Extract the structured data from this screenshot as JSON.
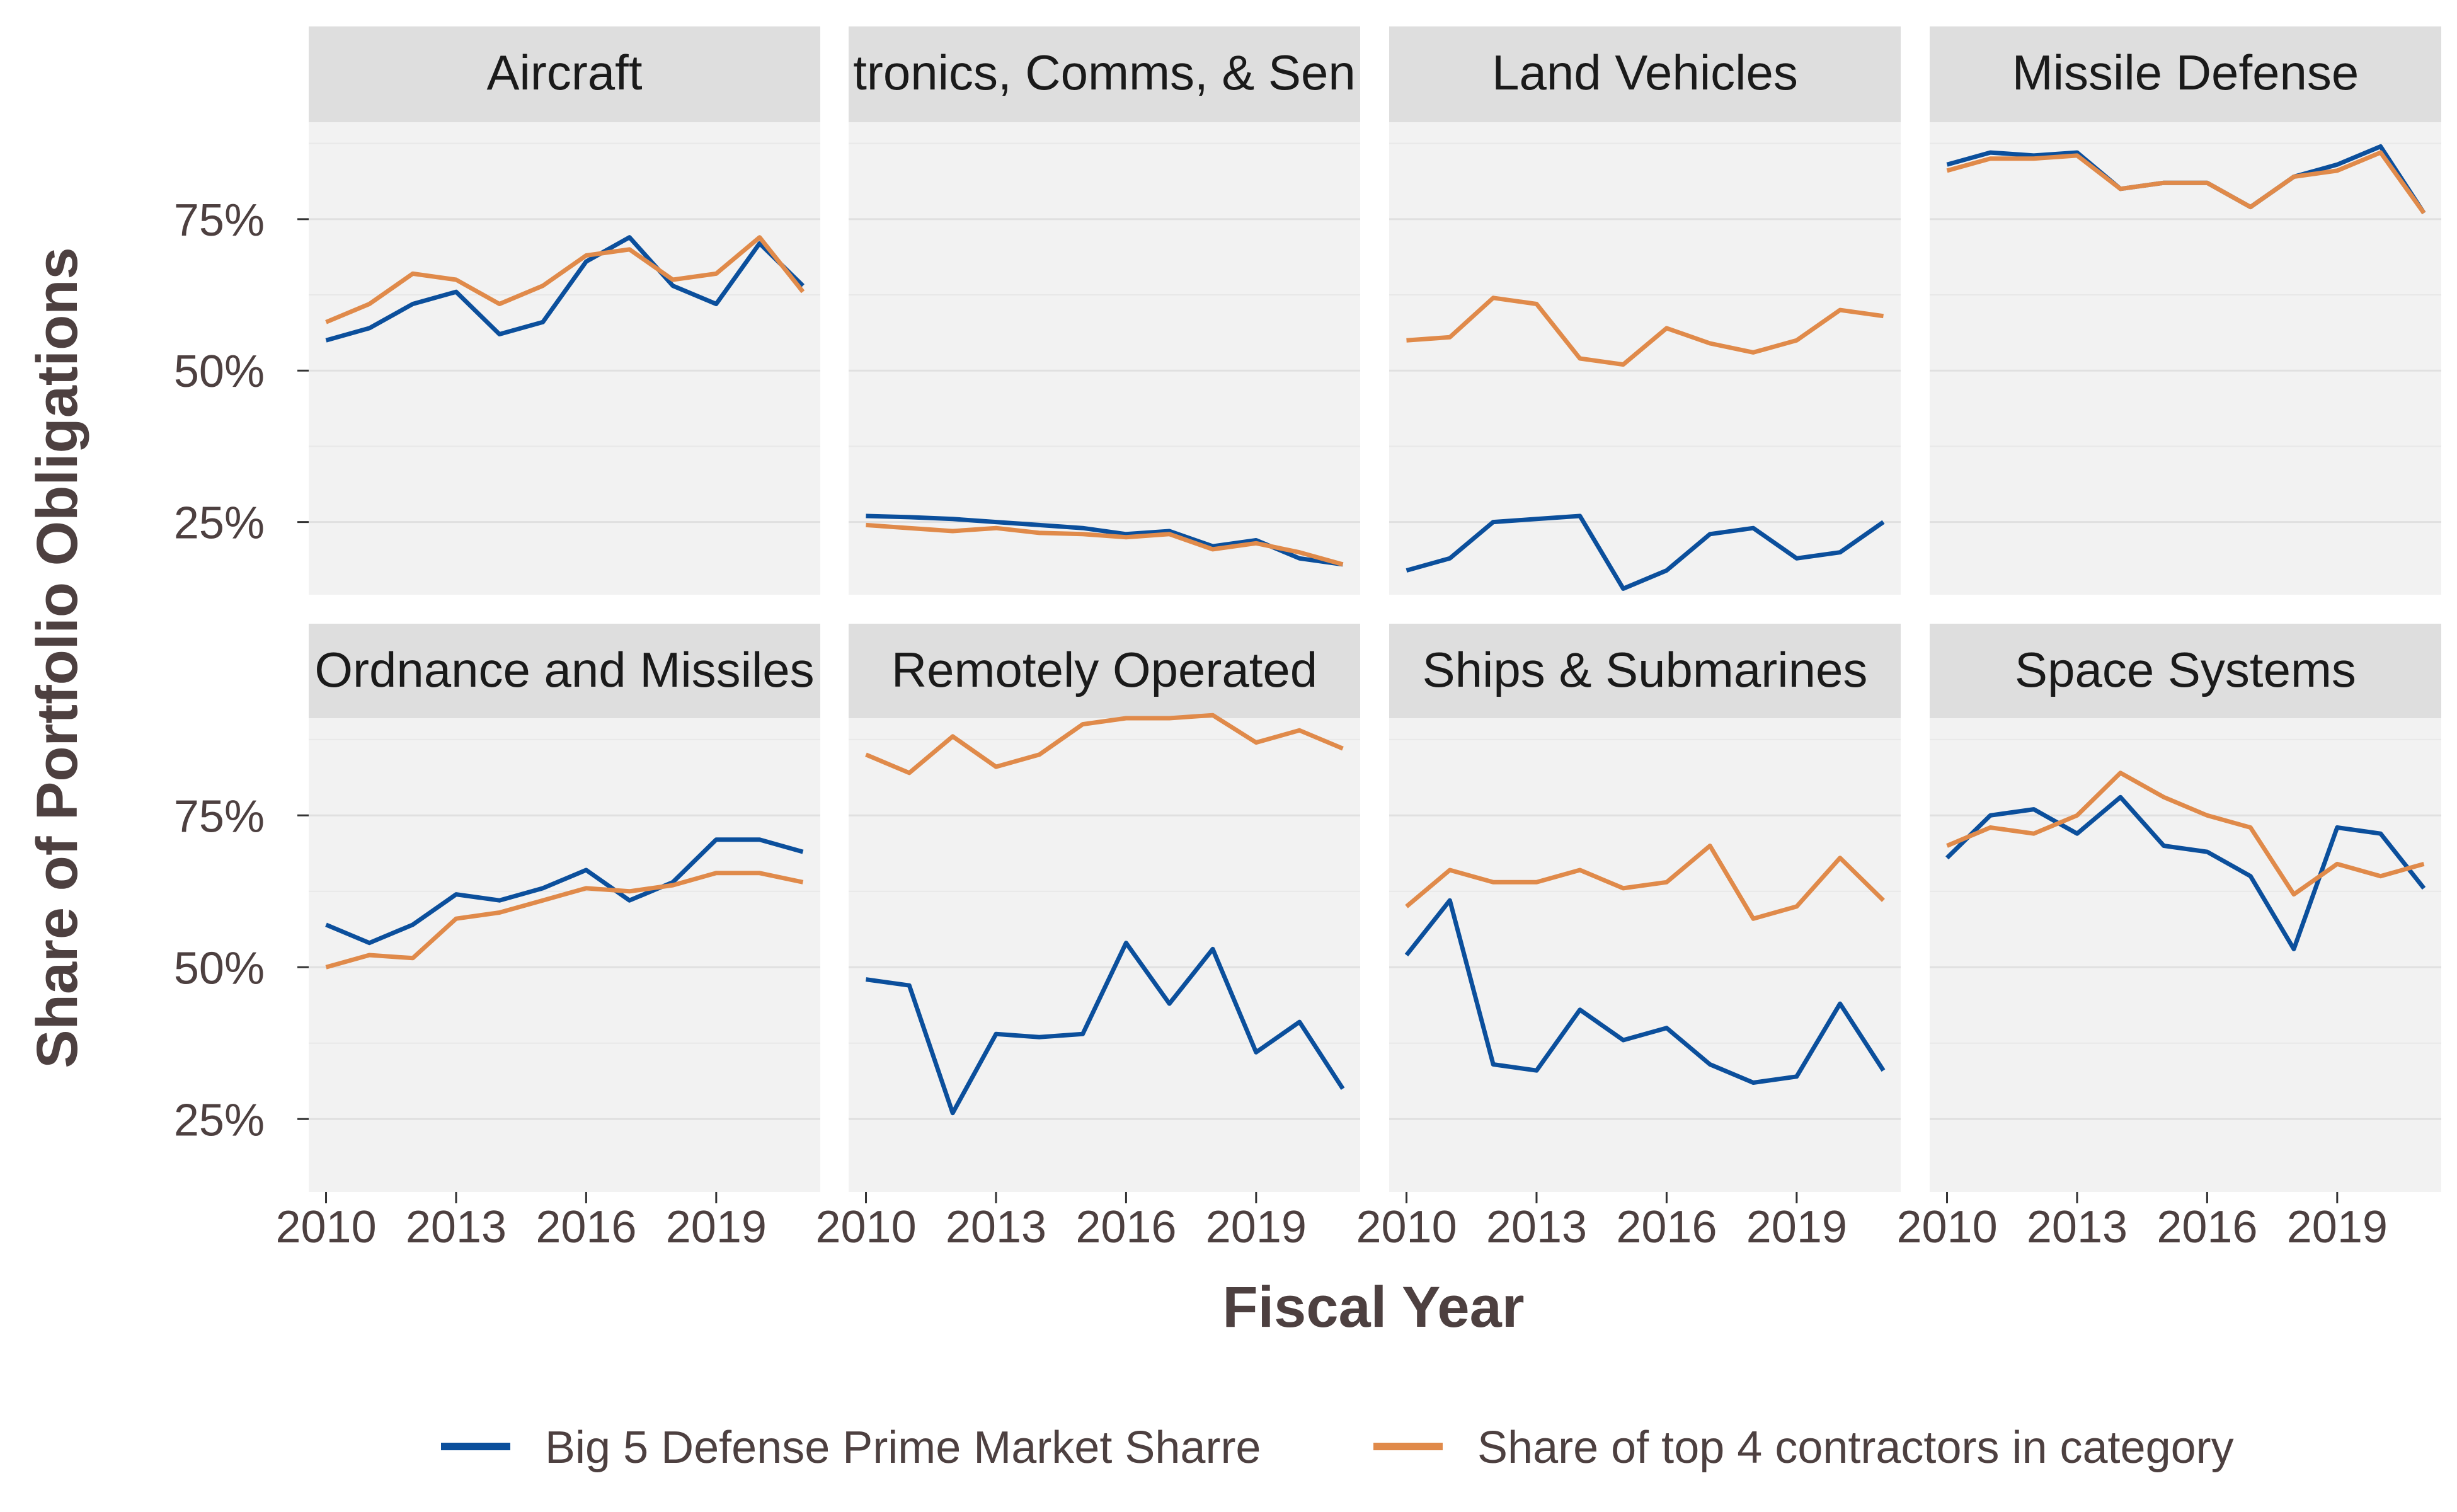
{
  "chart_data": {
    "type": "line",
    "xlabel": "Fiscal Year",
    "ylabel": "Share of Portfolio Obligations",
    "x": [
      2010,
      2011,
      2012,
      2013,
      2014,
      2015,
      2016,
      2017,
      2018,
      2019,
      2020,
      2021
    ],
    "xticks": [
      2010,
      2013,
      2016,
      2019
    ],
    "xtick_labels": [
      "2010",
      "2013",
      "2016",
      "2019"
    ],
    "xlim": [
      2009.6,
      2021.4
    ],
    "ylim": [
      0.13,
      0.91
    ],
    "yticks": [
      0.25,
      0.5,
      0.75
    ],
    "ytick_labels": [
      "25%",
      "50%",
      "75%"
    ],
    "grid": true,
    "legend_position": "bottom",
    "series_meta": [
      {
        "name": "Big 5 Defense Prime Market Sharre",
        "color": "#0b4f9c"
      },
      {
        "name": "Share of top 4 contractors in category",
        "color": "#e08a4a"
      }
    ],
    "facets": [
      {
        "title": "Aircraft",
        "display_title": "Aircraft",
        "series": [
          {
            "name": "Big 5 Defense Prime Market Sharre",
            "values": [
              0.55,
              0.57,
              0.61,
              0.63,
              0.56,
              0.58,
              0.68,
              0.72,
              0.64,
              0.61,
              0.71,
              0.64
            ]
          },
          {
            "name": "Share of top 4 contractors in category",
            "values": [
              0.58,
              0.61,
              0.66,
              0.65,
              0.61,
              0.64,
              0.69,
              0.7,
              0.65,
              0.66,
              0.72,
              0.63
            ]
          }
        ]
      },
      {
        "title": "Electronics, Comms, & Sensors",
        "display_title": "tronics, Comms, & Sen",
        "series": [
          {
            "name": "Big 5 Defense Prime Market Sharre",
            "values": [
              0.26,
              0.258,
              0.255,
              0.25,
              0.245,
              0.24,
              0.23,
              0.235,
              0.21,
              0.22,
              0.19,
              0.18
            ]
          },
          {
            "name": "Share of top 4 contractors in category",
            "values": [
              0.245,
              0.24,
              0.235,
              0.24,
              0.232,
              0.23,
              0.225,
              0.23,
              0.205,
              0.215,
              0.2,
              0.18
            ]
          }
        ]
      },
      {
        "title": "Land Vehicles",
        "display_title": "Land Vehicles",
        "series": [
          {
            "name": "Big 5 Defense Prime Market Sharre",
            "values": [
              0.17,
              0.19,
              0.25,
              0.255,
              0.26,
              0.14,
              0.17,
              0.23,
              0.24,
              0.19,
              0.2,
              0.25
            ]
          },
          {
            "name": "Share of top 4 contractors in category",
            "values": [
              0.55,
              0.555,
              0.62,
              0.61,
              0.52,
              0.51,
              0.57,
              0.545,
              0.53,
              0.55,
              0.6,
              0.59
            ]
          }
        ]
      },
      {
        "title": "Missile Defense",
        "display_title": "Missile Defense",
        "series": [
          {
            "name": "Big 5 Defense Prime Market Sharre",
            "values": [
              0.84,
              0.86,
              0.855,
              0.86,
              0.8,
              0.81,
              0.81,
              0.77,
              0.82,
              0.84,
              0.87,
              0.76
            ]
          },
          {
            "name": "Share of top 4 contractors in category",
            "values": [
              0.83,
              0.85,
              0.85,
              0.855,
              0.8,
              0.81,
              0.81,
              0.77,
              0.82,
              0.83,
              0.86,
              0.76
            ]
          }
        ]
      },
      {
        "title": "Ordnance and Missiles",
        "display_title": "Ordnance and Missiles",
        "series": [
          {
            "name": "Big 5 Defense Prime Market Sharre",
            "values": [
              0.57,
              0.54,
              0.57,
              0.62,
              0.61,
              0.63,
              0.66,
              0.61,
              0.64,
              0.71,
              0.71,
              0.69
            ]
          },
          {
            "name": "Share of top 4 contractors in category",
            "values": [
              0.5,
              0.52,
              0.515,
              0.58,
              0.59,
              0.61,
              0.63,
              0.625,
              0.635,
              0.655,
              0.655,
              0.64
            ]
          }
        ]
      },
      {
        "title": "Remotely Operated",
        "display_title": "Remotely Operated",
        "series": [
          {
            "name": "Big 5 Defense Prime Market Sharre",
            "values": [
              0.48,
              0.47,
              0.26,
              0.39,
              0.385,
              0.39,
              0.54,
              0.44,
              0.53,
              0.36,
              0.41,
              0.3
            ]
          },
          {
            "name": "Share of top 4 contractors in category",
            "values": [
              0.85,
              0.82,
              0.88,
              0.83,
              0.85,
              0.9,
              0.91,
              0.91,
              0.915,
              0.87,
              0.89,
              0.86
            ]
          }
        ]
      },
      {
        "title": "Ships & Submarines",
        "display_title": "Ships & Submarines",
        "series": [
          {
            "name": "Big 5 Defense Prime Market Sharre",
            "values": [
              0.52,
              0.61,
              0.34,
              0.33,
              0.43,
              0.38,
              0.4,
              0.34,
              0.31,
              0.32,
              0.44,
              0.33
            ]
          },
          {
            "name": "Share of top 4 contractors in category",
            "values": [
              0.6,
              0.66,
              0.64,
              0.64,
              0.66,
              0.63,
              0.64,
              0.7,
              0.58,
              0.6,
              0.68,
              0.61
            ]
          }
        ]
      },
      {
        "title": "Space Systems",
        "display_title": "Space Systems",
        "series": [
          {
            "name": "Big 5 Defense Prime Market Sharre",
            "values": [
              0.68,
              0.75,
              0.76,
              0.72,
              0.78,
              0.7,
              0.69,
              0.65,
              0.53,
              0.73,
              0.72,
              0.63
            ]
          },
          {
            "name": "Share of top 4 contractors in category",
            "values": [
              0.7,
              0.73,
              0.72,
              0.75,
              0.82,
              0.78,
              0.75,
              0.73,
              0.62,
              0.67,
              0.65,
              0.67
            ]
          }
        ]
      }
    ]
  }
}
